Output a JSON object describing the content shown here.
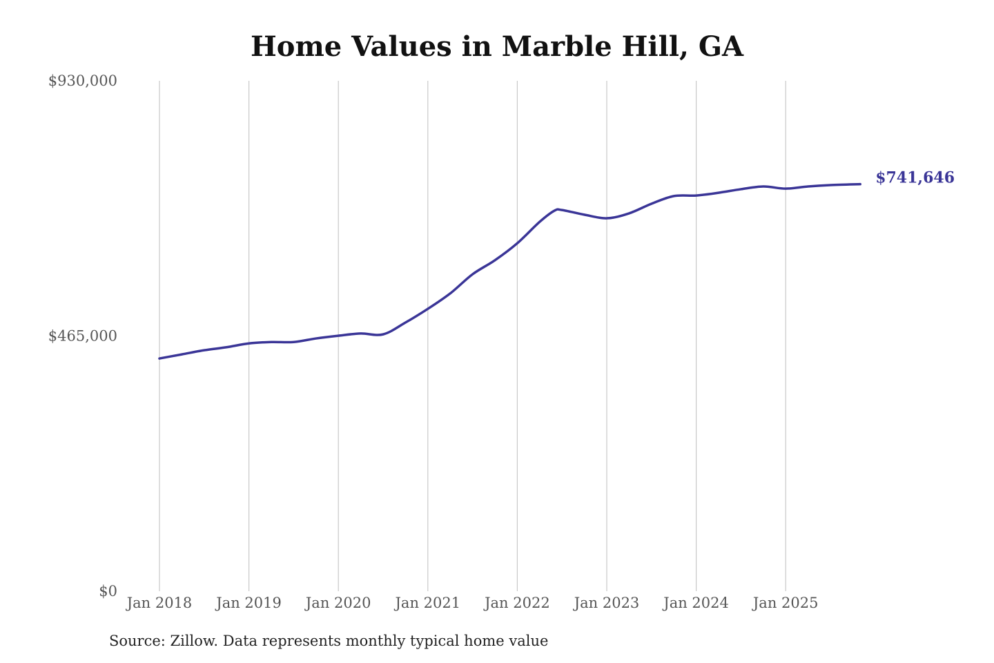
{
  "chart_data": {
    "type": "line",
    "title": "Home Values in Marble Hill, GA",
    "source": "Source: Zillow. Data represents monthly typical home value",
    "ylim": [
      0,
      930000
    ],
    "y_ticks": [
      0,
      465000,
      930000
    ],
    "y_tick_labels": [
      "$0",
      "$465,000",
      "$930,000"
    ],
    "x_tick_labels": [
      "Jan 2018",
      "Jan 2019",
      "Jan 2020",
      "Jan 2021",
      "Jan 2022",
      "Jan 2023",
      "Jan 2024",
      "Jan 2025"
    ],
    "x_ticks": [
      "2018-01",
      "2019-01",
      "2020-01",
      "2021-01",
      "2022-01",
      "2023-01",
      "2024-01",
      "2025-01"
    ],
    "grid": "vertical",
    "line_color": "#3a3597",
    "end_label": "$741,646",
    "x": [
      "2018-01",
      "2018-04",
      "2018-07",
      "2018-10",
      "2019-01",
      "2019-04",
      "2019-07",
      "2019-10",
      "2020-01",
      "2020-04",
      "2020-07",
      "2020-10",
      "2021-01",
      "2021-04",
      "2021-07",
      "2021-10",
      "2022-01",
      "2022-04",
      "2022-06",
      "2022-07",
      "2022-10",
      "2023-01",
      "2023-04",
      "2023-07",
      "2023-10",
      "2024-01",
      "2024-04",
      "2024-07",
      "2024-10",
      "2025-01",
      "2025-04",
      "2025-07",
      "2025-11"
    ],
    "values": [
      424000,
      431500,
      439000,
      444500,
      451500,
      454000,
      454000,
      460500,
      465500,
      469500,
      468000,
      489500,
      514500,
      542500,
      577500,
      603000,
      634000,
      673000,
      693500,
      694500,
      686000,
      679500,
      688500,
      706000,
      720000,
      721000,
      726000,
      732500,
      737500,
      733500,
      737500,
      740000,
      741646
    ]
  }
}
